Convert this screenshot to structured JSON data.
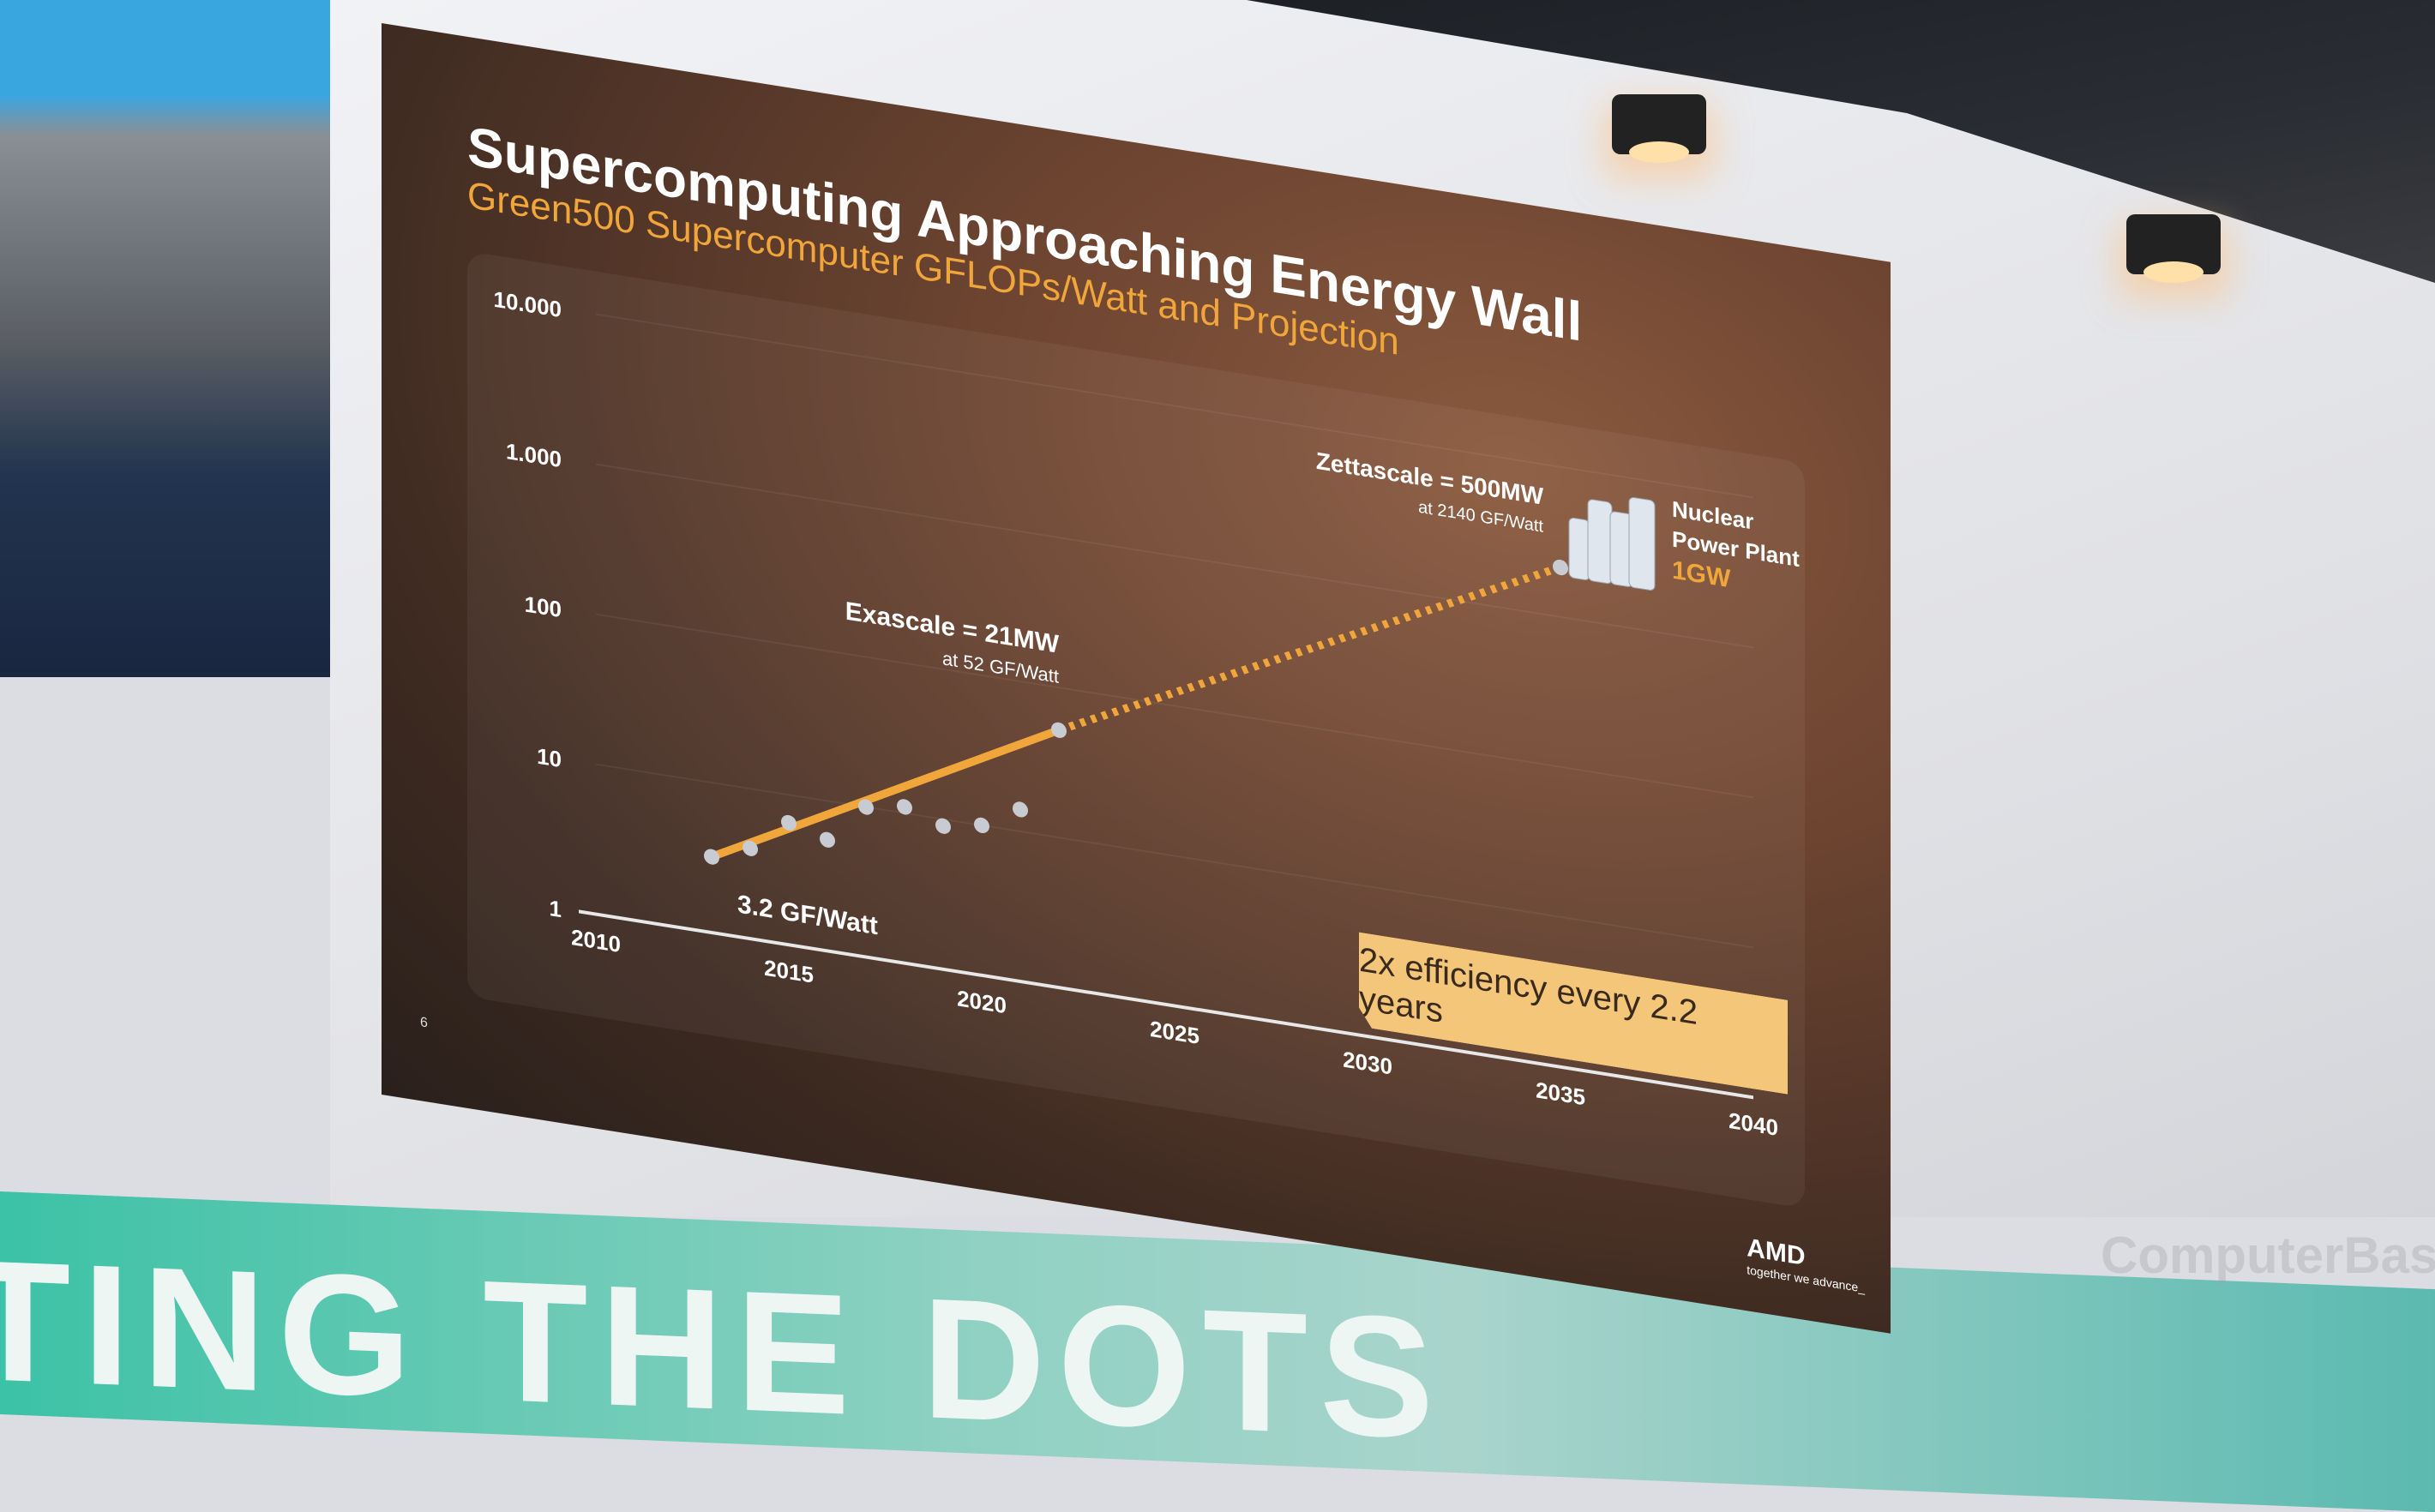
{
  "slide": {
    "title": "Supercomputing Approaching Energy Wall",
    "subtitle": "Green500 Supercomputer GFLOPs/Watt and Projection",
    "page_number": "6",
    "logo": "AMD",
    "logo_tagline": "together we advance_",
    "callout": "2x efficiency every 2.2 years"
  },
  "background": {
    "banner_text": "TING THE DOTS",
    "watermark": "ComputerBase"
  },
  "colors": {
    "accent": "#f0a63a",
    "point": "#c8ccd2",
    "callout_bg": "#f3c67a"
  },
  "chart_data": {
    "type": "scatter",
    "title": "Green500 Supercomputer GFLOPs/Watt and Projection",
    "xlabel": "",
    "ylabel": "GFLOPs/Watt",
    "y_scale": "log",
    "ylim": [
      1,
      10000
    ],
    "xlim": [
      2010,
      2040
    ],
    "y_ticks": [
      {
        "value": 10000,
        "label": "10.000"
      },
      {
        "value": 1000,
        "label": "1.000"
      },
      {
        "value": 100,
        "label": "100"
      },
      {
        "value": 10,
        "label": "10"
      },
      {
        "value": 1,
        "label": "1"
      }
    ],
    "x_ticks": [
      {
        "value": 2010,
        "label": "2010"
      },
      {
        "value": 2015,
        "label": "2015"
      },
      {
        "value": 2020,
        "label": "2020"
      },
      {
        "value": 2025,
        "label": "2025"
      },
      {
        "value": 2030,
        "label": "2030"
      },
      {
        "value": 2035,
        "label": "2035"
      },
      {
        "value": 2040,
        "label": "2040"
      }
    ],
    "points": [
      {
        "x": 2013,
        "y": 3.2
      },
      {
        "x": 2014,
        "y": 4
      },
      {
        "x": 2015,
        "y": 6.5
      },
      {
        "x": 2016,
        "y": 5.5
      },
      {
        "x": 2017,
        "y": 10
      },
      {
        "x": 2018,
        "y": 11
      },
      {
        "x": 2019,
        "y": 9
      },
      {
        "x": 2020,
        "y": 10
      },
      {
        "x": 2021,
        "y": 14
      },
      {
        "x": 2022,
        "y": 52
      },
      {
        "x": 2035,
        "y": 2140
      }
    ],
    "trend_actual": {
      "from": {
        "x": 2013,
        "y": 3.2
      },
      "to": {
        "x": 2022,
        "y": 52
      }
    },
    "trend_projection": {
      "from": {
        "x": 2022,
        "y": 52
      },
      "to": {
        "x": 2035,
        "y": 2140
      }
    },
    "annotations": {
      "start": "3.2 GF/Watt",
      "exascale": "Exascale = 21MW",
      "exascale_sub": "at 52 GF/Watt",
      "zettascale": "Zettascale = 500MW",
      "zettascale_sub": "at 2140 GF/Watt",
      "nuclear_1": "Nuclear",
      "nuclear_2": "Power Plant",
      "nuclear_3": "1GW"
    },
    "grid": true
  }
}
